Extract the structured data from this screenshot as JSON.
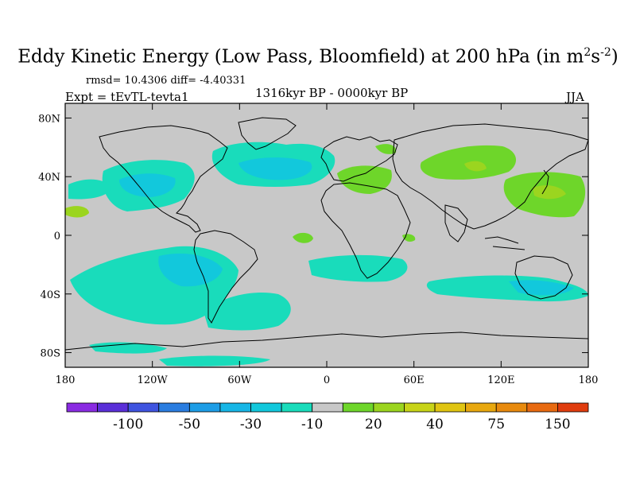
{
  "title": {
    "main": "Eddy Kinetic Energy (Low Pass, Bloomfield) at 200 hPa (in m",
    "sup1": "2",
    "mid": "s",
    "sup2": "-2",
    "end": ")"
  },
  "stats": "rmsd= 10.4306 diff= -4.40331",
  "experiment": "Expt = tEvTL-tevta1",
  "period": "1316kyr BP - 0000kyr BP",
  "season": "JJA",
  "axes": {
    "y_ticks": [
      {
        "label": "80N",
        "lat": 80
      },
      {
        "label": "40N",
        "lat": 40
      },
      {
        "label": "0",
        "lat": 0
      },
      {
        "label": "40S",
        "lat": -40
      },
      {
        "label": "80S",
        "lat": -80
      }
    ],
    "x_ticks": [
      {
        "label": "180",
        "lon": -180
      },
      {
        "label": "120W",
        "lon": -120
      },
      {
        "label": "60W",
        "lon": -60
      },
      {
        "label": "0",
        "lon": 0
      },
      {
        "label": "60E",
        "lon": 60
      },
      {
        "label": "120E",
        "lon": 120
      },
      {
        "label": "180",
        "lon": 180
      }
    ],
    "lat_range": [
      -90,
      90
    ],
    "lon_range": [
      -180,
      180
    ]
  },
  "colorbar": {
    "colors": [
      "#8a2be2",
      "#5a2fd8",
      "#3f54e0",
      "#2a7de0",
      "#1d9de6",
      "#17b6e6",
      "#12c8dc",
      "#19dcbb",
      "#c8c8c8",
      "#6ed62a",
      "#9bd51f",
      "#c8d418",
      "#e0c512",
      "#e8a80f",
      "#e88a0e",
      "#e86a10",
      "#e03c0e"
    ],
    "labels": [
      {
        "text": "-100",
        "boundary": 2
      },
      {
        "text": "-50",
        "boundary": 4
      },
      {
        "text": "-30",
        "boundary": 6
      },
      {
        "text": "-10",
        "boundary": 8
      },
      {
        "text": "20",
        "boundary": 10
      },
      {
        "text": "40",
        "boundary": 12
      },
      {
        "text": "75",
        "boundary": 14
      },
      {
        "text": "150",
        "boundary": 16
      }
    ]
  },
  "field_colors": {
    "background": "#c8c8c8",
    "negative_light": "#19dcbb",
    "negative_mid": "#12c8dc",
    "positive_light": "#6ed62a",
    "positive_mid": "#9bd51f"
  }
}
